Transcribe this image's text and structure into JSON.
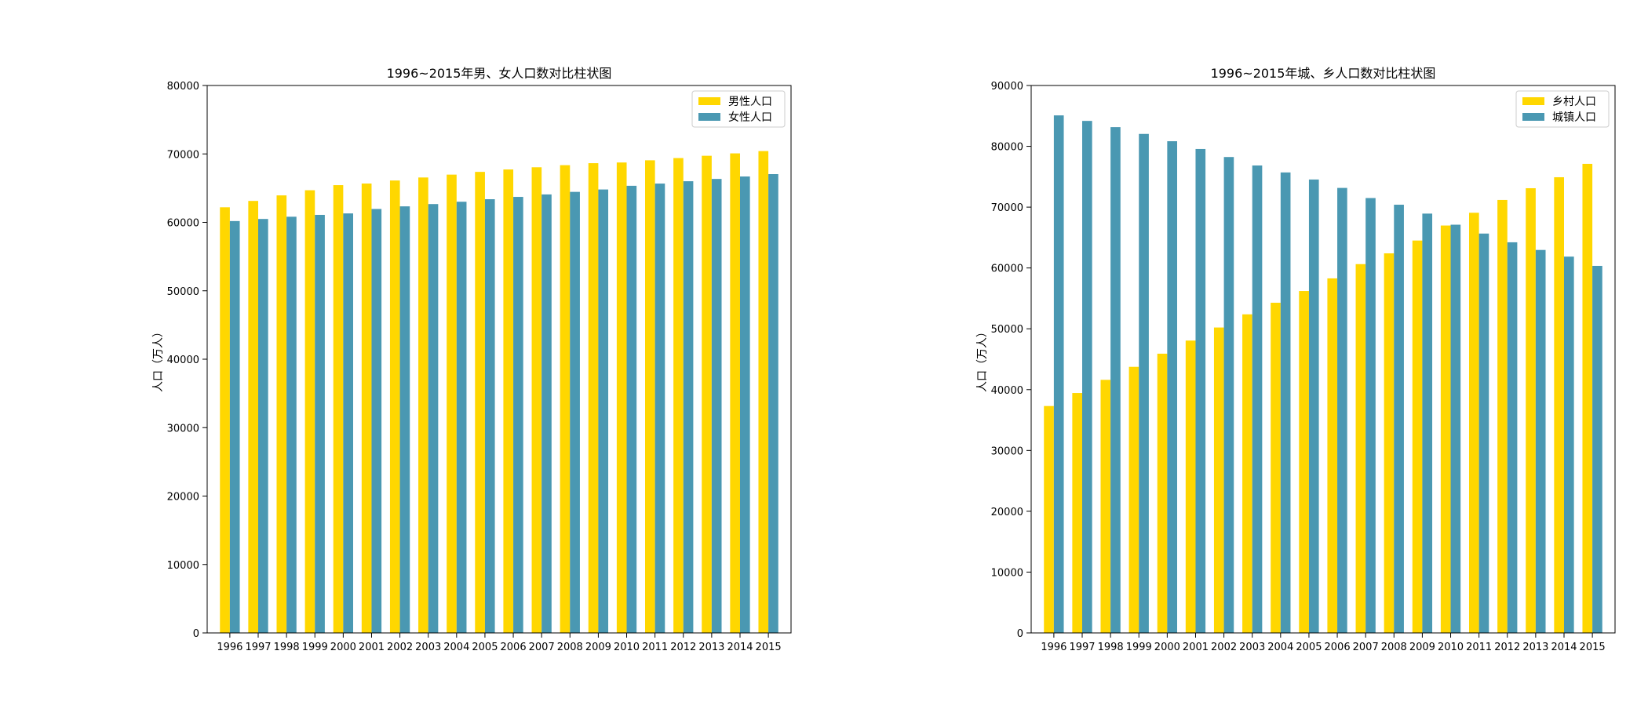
{
  "chart_data": [
    {
      "type": "bar",
      "title": "1996~2015年男、女人口数对比柱状图",
      "xlabel": "",
      "ylabel": "人口（万人）",
      "ylim": [
        0,
        80000
      ],
      "yticks": [
        0,
        10000,
        20000,
        30000,
        40000,
        50000,
        60000,
        70000,
        80000
      ],
      "legend_position": "top-right",
      "grid": false,
      "categories": [
        "1996",
        "1997",
        "1998",
        "1999",
        "2000",
        "2001",
        "2002",
        "2003",
        "2004",
        "2005",
        "2006",
        "2007",
        "2008",
        "2009",
        "2010",
        "2011",
        "2012",
        "2013",
        "2014",
        "2015"
      ],
      "series": [
        {
          "name": "男性人口",
          "color": "#FFD700",
          "values": [
            62200,
            63131,
            63940,
            64692,
            65437,
            65672,
            66115,
            66556,
            66976,
            67375,
            67728,
            68048,
            68357,
            68647,
            68748,
            69068,
            69395,
            69728,
            70079,
            70414
          ]
        },
        {
          "name": "女性人口",
          "color": "#4A98B2",
          "values": [
            60189,
            60495,
            60821,
            61093,
            61306,
            61955,
            62338,
            62671,
            63012,
            63381,
            63720,
            64081,
            64453,
            64803,
            65343,
            65667,
            66009,
            66344,
            66703,
            67048
          ]
        }
      ]
    },
    {
      "type": "bar",
      "title": "1996~2015年城、乡人口数对比柱状图",
      "xlabel": "",
      "ylabel": "人口（万人）",
      "ylim": [
        0,
        90000
      ],
      "yticks": [
        0,
        10000,
        20000,
        30000,
        40000,
        50000,
        60000,
        70000,
        80000,
        90000
      ],
      "legend_position": "top-right",
      "grid": false,
      "categories": [
        "1996",
        "1997",
        "1998",
        "1999",
        "2000",
        "2001",
        "2002",
        "2003",
        "2004",
        "2005",
        "2006",
        "2007",
        "2008",
        "2009",
        "2010",
        "2011",
        "2012",
        "2013",
        "2014",
        "2015"
      ],
      "series": [
        {
          "name": "乡村人口",
          "color": "#FFD700",
          "values": [
            37304,
            39449,
            41608,
            43748,
            45906,
            48064,
            50212,
            52376,
            54283,
            56212,
            58288,
            60633,
            62403,
            64512,
            66978,
            69079,
            71182,
            73111,
            74916,
            77116
          ]
        },
        {
          "name": "城镇人口",
          "color": "#4A98B2",
          "values": [
            85085,
            84177,
            83153,
            82038,
            80837,
            79563,
            78241,
            76851,
            75705,
            74544,
            73160,
            71496,
            70399,
            68938,
            67113,
            65656,
            64222,
            62961,
            61866,
            60346
          ]
        }
      ]
    }
  ]
}
